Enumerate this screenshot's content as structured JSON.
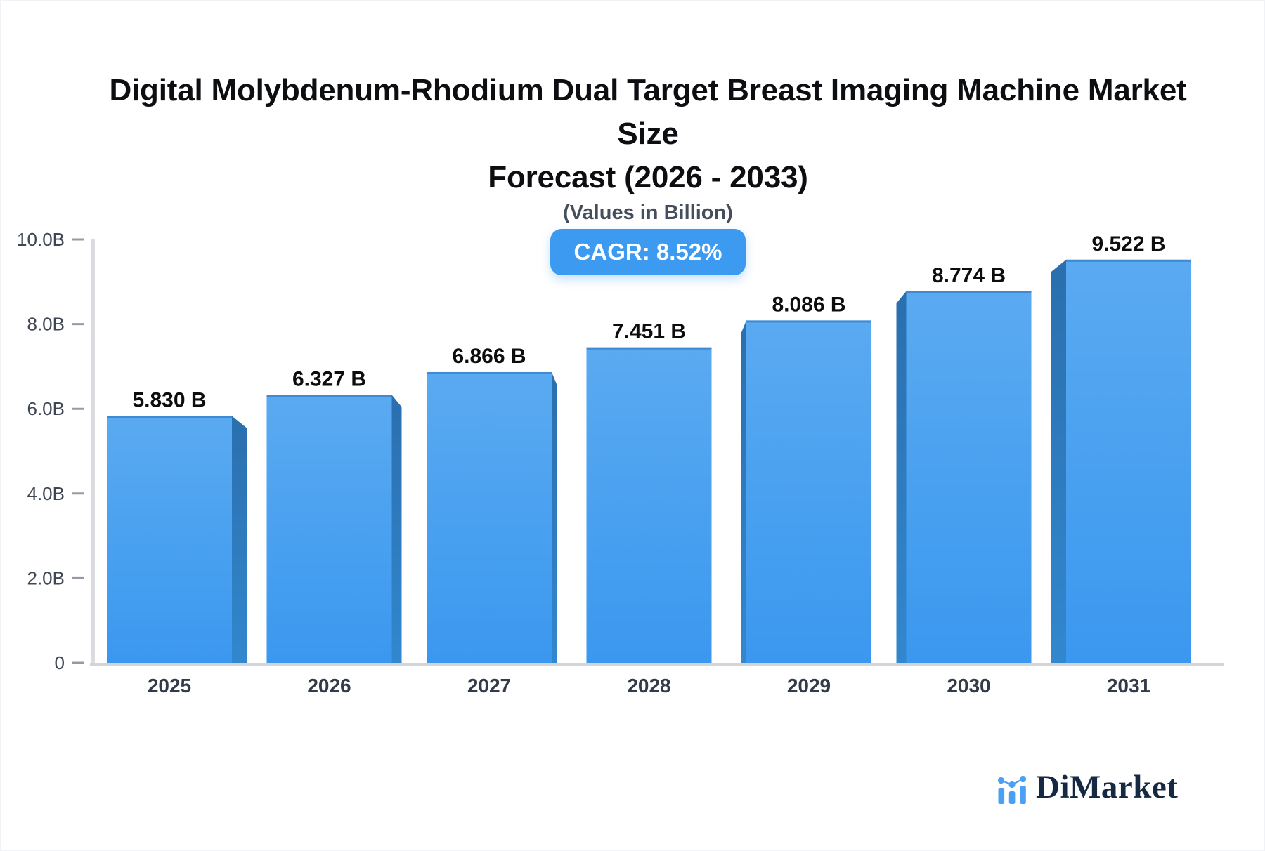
{
  "header": {
    "title_line1": "Digital Molybdenum-Rhodium Dual Target Breast Imaging Machine Market Size",
    "title_line2": "Forecast (2026 - 2033)",
    "subtitle": "(Values in Billion)",
    "badge_label": "CAGR: 8.52%"
  },
  "chart_data": {
    "type": "bar",
    "title": "Digital Molybdenum-Rhodium Dual Target Breast Imaging Machine Market Size Forecast (2026 - 2033)",
    "subtitle": "(Values in Billion)",
    "cagr_percent": 8.52,
    "categories": [
      "2025",
      "2026",
      "2027",
      "2028",
      "2029",
      "2030",
      "2031"
    ],
    "values": [
      5.83,
      6.327,
      6.866,
      7.451,
      8.086,
      8.774,
      9.522
    ],
    "value_labels": [
      "5.830 B",
      "6.327 B",
      "6.866 B",
      "7.451 B",
      "8.086 B",
      "8.774 B",
      "9.522 B"
    ],
    "ytick_values": [
      0,
      2,
      4,
      6,
      8,
      10
    ],
    "ytick_labels": [
      "0",
      "2.0B",
      "4.0B",
      "6.0B",
      "8.0B",
      "10.0B"
    ],
    "ylim": [
      0,
      10
    ],
    "grid": false,
    "legend": false
  },
  "logo": {
    "name": "DiMarket"
  },
  "colors": {
    "bar_face_top": "#5aaaf1",
    "bar_face_bottom": "#3b98ef",
    "bar_side_top": "#2a6fae",
    "bar_side_bottom": "#3287ce",
    "bar_top_edge": "#4189d2",
    "axis_line": "#d9dbdf",
    "baseline": "#d2d4d8",
    "tick": "#959ba6",
    "tick_label": "#3f4754",
    "year_label": "#333b49",
    "value_label": "#0c0d0f",
    "badge_bg": "#3c9bf0",
    "badge_text": "#ffffff",
    "logo_blue": "#4aa0f5",
    "logo_text": "#152a42"
  }
}
